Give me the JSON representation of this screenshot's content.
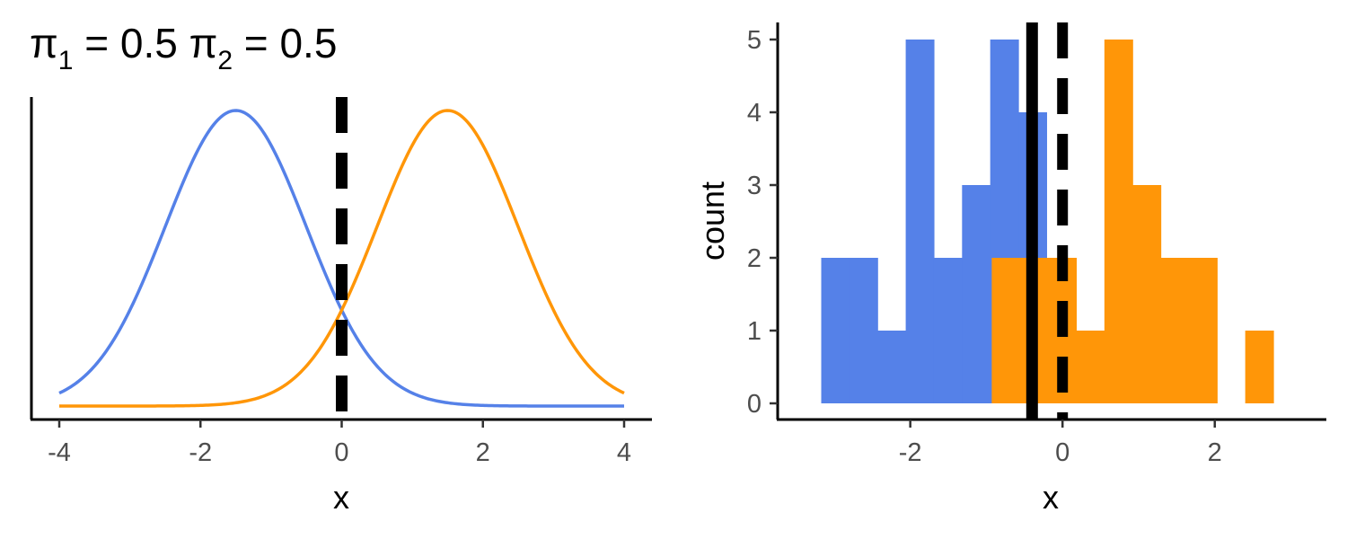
{
  "title": {
    "pi1_symbol": "π",
    "pi1_sub": "1",
    "pi1_rest": " = 0.5 ",
    "pi2_symbol": "π",
    "pi2_sub": "2",
    "pi2_rest": " = 0.5"
  },
  "colors": {
    "class1": "#5581E8",
    "class2": "#FF9608",
    "decision_line": "#000000"
  },
  "chart_data": [
    {
      "type": "line",
      "title": "π1 = 0.5 π2 = 0.5",
      "xlabel": "x",
      "ylabel": "",
      "xlim": [
        -4,
        4
      ],
      "xticks": [
        "-4",
        "-2",
        "0",
        "2",
        "4"
      ],
      "y_axis_ticks_shown": false,
      "grid": false,
      "legend": "none",
      "series": [
        {
          "mean": -1.5,
          "sd": 1,
          "weight": 0.5,
          "color": "#5581E8"
        },
        {
          "mean": 1.5,
          "sd": 1,
          "weight": 0.5,
          "color": "#FF9608"
        }
      ],
      "vlines": [
        {
          "x": 0,
          "style": "dashed"
        }
      ]
    },
    {
      "type": "bar",
      "subtype": "histogram",
      "xlabel": "x",
      "ylabel": "count",
      "xlim": [
        -3.4,
        3.1
      ],
      "ylim": [
        0,
        5.2
      ],
      "xticks": [
        "-2",
        "0",
        "2"
      ],
      "yticks": [
        "0",
        "1",
        "2",
        "3",
        "4",
        "5"
      ],
      "binwidth": 0.37,
      "grid": false,
      "legend": "none",
      "series": [
        {
          "color": "#5581E8",
          "bins": [
            {
              "x0": -3.17,
              "x1": -2.8,
              "count": 2
            },
            {
              "x0": -2.8,
              "x1": -2.43,
              "count": 2
            },
            {
              "x0": -2.43,
              "x1": -2.06,
              "count": 1
            },
            {
              "x0": -2.06,
              "x1": -1.69,
              "count": 5
            },
            {
              "x0": -1.69,
              "x1": -1.32,
              "count": 2
            },
            {
              "x0": -1.32,
              "x1": -0.95,
              "count": 3
            },
            {
              "x0": -0.95,
              "x1": -0.58,
              "count": 5
            },
            {
              "x0": -0.58,
              "x1": -0.21,
              "count": 4
            }
          ]
        },
        {
          "color": "#FF9608",
          "bins": [
            {
              "x0": -0.93,
              "x1": -0.56,
              "count": 2
            },
            {
              "x0": -0.56,
              "x1": -0.19,
              "count": 2
            },
            {
              "x0": -0.19,
              "x1": 0.18,
              "count": 2
            },
            {
              "x0": 0.18,
              "x1": 0.55,
              "count": 1
            },
            {
              "x0": 0.55,
              "x1": 0.92,
              "count": 5
            },
            {
              "x0": 0.92,
              "x1": 1.29,
              "count": 3
            },
            {
              "x0": 1.29,
              "x1": 1.66,
              "count": 2
            },
            {
              "x0": 1.66,
              "x1": 2.03,
              "count": 2
            },
            {
              "x0": 2.4,
              "x1": 2.77,
              "count": 1
            }
          ]
        }
      ],
      "vlines": [
        {
          "x": -0.4,
          "style": "solid"
        },
        {
          "x": 0,
          "style": "dashed"
        }
      ]
    }
  ]
}
